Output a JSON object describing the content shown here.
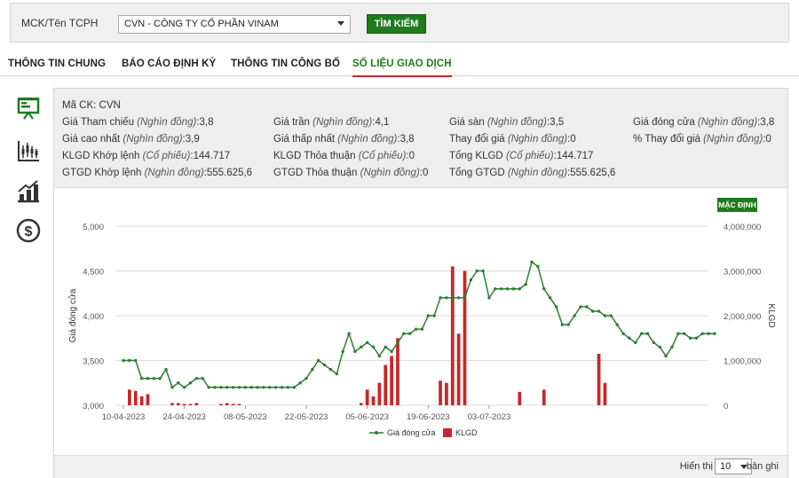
{
  "search": {
    "label": "MCK/Tên TCPH",
    "selected": "CVN - CÔNG TY CỔ PHẦN VINAM",
    "button": "TÌM KIẾM"
  },
  "tabs": [
    {
      "label": "THÔNG TIN CHUNG",
      "active": false
    },
    {
      "label": "BÁO CÁO ĐỊNH KỲ",
      "active": false
    },
    {
      "label": "THÔNG TIN CÔNG BỐ",
      "active": false
    },
    {
      "label": "SỐ LIỆU GIAO DỊCH",
      "active": true
    }
  ],
  "side_icons": [
    "presentation-board-icon",
    "candlestick-chart-icon",
    "bar-growth-chart-icon",
    "dollar-coin-icon"
  ],
  "info": {
    "ticker_label": "Mã CK:",
    "ticker": "CVN",
    "unit_price": "(Nghìn đồng)",
    "unit_shares": "(Cổ phiếu)",
    "items": [
      {
        "label": "Giá Tham chiếu",
        "unit": "(Nghìn đồng)",
        "value": "3,8"
      },
      {
        "label": "Giá trần",
        "unit": "(Nghìn đồng)",
        "value": "4,1"
      },
      {
        "label": "Giá sàn",
        "unit": "(Nghìn đồng)",
        "value": "3,5"
      },
      {
        "label": "Giá đóng cửa",
        "unit": "(Nghìn đồng)",
        "value": "3,8"
      },
      {
        "label": "Giá cao nhất",
        "unit": "(Nghìn đồng)",
        "value": "3,9"
      },
      {
        "label": "Giá thấp nhất",
        "unit": "(Nghìn đồng)",
        "value": "3,8"
      },
      {
        "label": "Thay đổi giá",
        "unit": "(Nghìn đồng)",
        "value": "0"
      },
      {
        "label": "% Thay đổi giá",
        "unit": "(Nghìn đồng)",
        "value": "0"
      },
      {
        "label": "KLGD Khớp lệnh",
        "unit": "(Cổ phiếu)",
        "value": "144.717"
      },
      {
        "label": "KLGD Thỏa thuận",
        "unit": "(Cổ phiếu)",
        "value": "0"
      },
      {
        "label": "Tổng KLGD",
        "unit": "(Cổ phiếu)",
        "value": "144.717"
      },
      {
        "label": "GTGD Khớp lệnh",
        "unit": "(Nghìn đồng)",
        "value": "555.625,6"
      },
      {
        "label": "GTGD Thỏa thuận",
        "unit": "(Nghìn đồng)",
        "value": "0"
      },
      {
        "label": "Tổng GTGD",
        "unit": "(Nghìn đồng)",
        "value": "555.625,6"
      }
    ]
  },
  "chart": {
    "default_button": "MẶC ĐỊNH",
    "colors": {
      "price": "#2e7d32",
      "volume": "#c62828",
      "grid": "#dddddd"
    }
  },
  "chart_data": {
    "type": "bar+line",
    "ylabel_left": "Giá đóng cửa",
    "ylabel_right": "KLGD",
    "y_left_ticks": [
      "3,000",
      "3,500",
      "4,000",
      "4,500",
      "5,000"
    ],
    "y_left_range": [
      3000,
      5000
    ],
    "y_right_ticks": [
      "0",
      "1,000,000",
      "2,000,000",
      "3,000,000",
      "4,000,000"
    ],
    "y_right_range": [
      0,
      4000000
    ],
    "x_ticks": [
      {
        "index": 0,
        "label": "10-04-2023"
      },
      {
        "index": 10,
        "label": "24-04-2023"
      },
      {
        "index": 20,
        "label": "08-05-2023"
      },
      {
        "index": 30,
        "label": "22-05-2023"
      },
      {
        "index": 40,
        "label": "05-06-2023"
      },
      {
        "index": 50,
        "label": "19-06-2023"
      },
      {
        "index": 60,
        "label": "03-07-2023"
      }
    ],
    "series": [
      {
        "name": "Giá đóng cửa",
        "kind": "line",
        "values": [
          3500,
          3500,
          3500,
          3300,
          3300,
          3300,
          3300,
          3400,
          3200,
          3250,
          3200,
          3250,
          3300,
          3300,
          3200,
          3200,
          3200,
          3200,
          3200,
          3200,
          3200,
          3200,
          3200,
          3200,
          3200,
          3200,
          3200,
          3200,
          3200,
          3250,
          3300,
          3400,
          3500,
          3450,
          3400,
          3350,
          3600,
          3800,
          3600,
          3650,
          3700,
          3650,
          3550,
          3650,
          3600,
          3700,
          3800,
          3800,
          3850,
          3850,
          4000,
          4000,
          4200,
          4200,
          4200,
          4200,
          4200,
          4400,
          4500,
          4500,
          4200,
          4300,
          4300,
          4300,
          4300,
          4300,
          4350,
          4600,
          4550,
          4300,
          4200,
          4100,
          3900,
          3900,
          4000,
          4100,
          4100,
          4050,
          4050,
          4000,
          4000,
          3900,
          3800,
          3750,
          3700,
          3800,
          3800,
          3700,
          3650,
          3550,
          3650,
          3800,
          3800,
          3750,
          3750,
          3800,
          3800,
          3800
        ],
        "note": "daily closing prices"
      },
      {
        "name": "KLGD",
        "kind": "bar",
        "values": []
      }
    ]
  },
  "legend": [
    {
      "label": "Giá đóng cửa",
      "kind": "line"
    },
    {
      "label": "KLGD",
      "kind": "bar"
    }
  ],
  "pagination": {
    "show_label": "Hiển thị",
    "page_size": "10",
    "rows_label": "bản ghi"
  }
}
